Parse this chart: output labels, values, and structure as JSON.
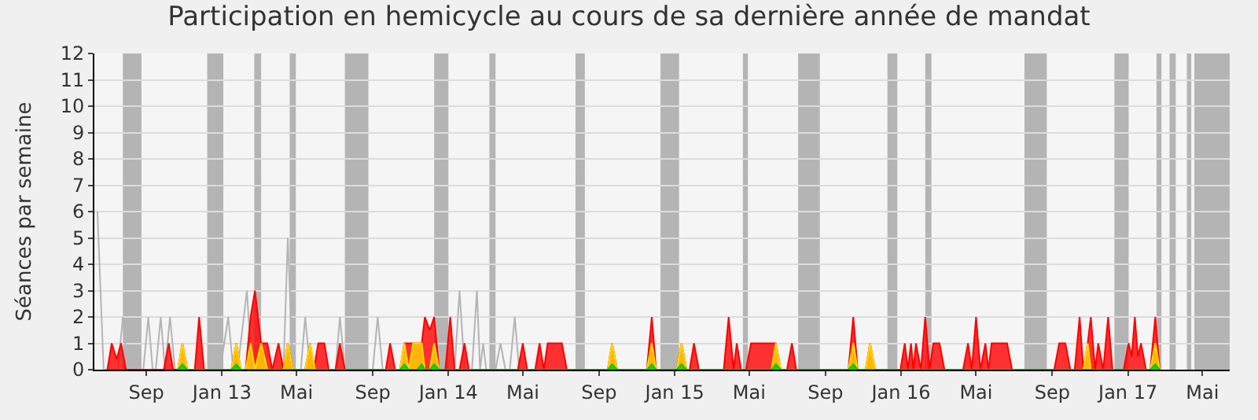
{
  "chart_data": {
    "type": "area",
    "title": "Participation en hemicycle au cours de sa dernière année de mandat",
    "ylabel": "Séances par semaine",
    "xlim": [
      "2012-06-09",
      "2017-06-14"
    ],
    "xticks": [
      {
        "value": "2012-09-01",
        "label": "Sep"
      },
      {
        "value": "2013-01-01",
        "label": "Jan 13"
      },
      {
        "value": "2013-05-01",
        "label": "Mai"
      },
      {
        "value": "2013-09-01",
        "label": "Sep"
      },
      {
        "value": "2014-01-01",
        "label": "Jan 14"
      },
      {
        "value": "2014-05-01",
        "label": "Mai"
      },
      {
        "value": "2014-09-01",
        "label": "Sep"
      },
      {
        "value": "2015-01-01",
        "label": "Jan 15"
      },
      {
        "value": "2015-05-01",
        "label": "Mai"
      },
      {
        "value": "2015-09-01",
        "label": "Sep"
      },
      {
        "value": "2016-01-01",
        "label": "Jan 16"
      },
      {
        "value": "2016-05-01",
        "label": "Mai"
      },
      {
        "value": "2016-09-01",
        "label": "Sep"
      },
      {
        "value": "2017-01-01",
        "label": "Jan 17"
      },
      {
        "value": "2017-05-01",
        "label": "Mai"
      }
    ],
    "ylim": [
      0,
      12
    ],
    "yticks": [
      0,
      1,
      2,
      3,
      4,
      5,
      6,
      7,
      8,
      9,
      10,
      11,
      12
    ],
    "grid": "y",
    "bands": [
      {
        "axis": "x",
        "from": "2012-07-25",
        "to": "2012-08-24",
        "color": "#b4b4b4"
      },
      {
        "axis": "x",
        "from": "2012-12-08",
        "to": "2013-01-03",
        "color": "#b4b4b4"
      },
      {
        "axis": "x",
        "from": "2013-02-22",
        "to": "2013-03-05",
        "color": "#b4b4b4"
      },
      {
        "axis": "x",
        "from": "2013-04-20",
        "to": "2013-04-30",
        "color": "#b4b4b4"
      },
      {
        "axis": "x",
        "from": "2013-07-18",
        "to": "2013-08-25",
        "color": "#b4b4b4"
      },
      {
        "axis": "x",
        "from": "2013-12-09",
        "to": "2014-01-01",
        "color": "#b4b4b4"
      },
      {
        "axis": "x",
        "from": "2014-03-08",
        "to": "2014-03-18",
        "color": "#b4b4b4"
      },
      {
        "axis": "x",
        "from": "2014-07-25",
        "to": "2014-08-09",
        "color": "#b4b4b4"
      },
      {
        "axis": "x",
        "from": "2014-12-09",
        "to": "2015-01-08",
        "color": "#b4b4b4"
      },
      {
        "axis": "x",
        "from": "2015-04-21",
        "to": "2015-04-29",
        "color": "#b4b4b4"
      },
      {
        "axis": "x",
        "from": "2015-07-19",
        "to": "2015-08-23",
        "color": "#b4b4b4"
      },
      {
        "axis": "x",
        "from": "2015-12-10",
        "to": "2015-12-26",
        "color": "#b4b4b4"
      },
      {
        "axis": "x",
        "from": "2016-02-09",
        "to": "2016-02-19",
        "color": "#b4b4b4"
      },
      {
        "axis": "x",
        "from": "2016-07-18",
        "to": "2016-08-23",
        "color": "#b4b4b4"
      },
      {
        "axis": "x",
        "from": "2016-12-10",
        "to": "2017-01-02",
        "color": "#b4b4b4"
      },
      {
        "axis": "x",
        "from": "2017-02-16",
        "to": "2017-02-24",
        "color": "#b4b4b4"
      },
      {
        "axis": "x",
        "from": "2017-03-09",
        "to": "2017-03-19",
        "color": "#b4b4b4"
      },
      {
        "axis": "x",
        "from": "2017-04-06",
        "to": "2017-04-13",
        "color": "#b4b4b4"
      },
      {
        "axis": "x",
        "from": "2017-04-18",
        "to": "2017-06-14",
        "color": "#b4b4b4"
      }
    ],
    "series": [
      {
        "type": "line",
        "color": "#b4b4b4",
        "x": [
          "2012-06-14",
          "2012-06-24",
          "2012-07-17",
          "2012-07-25",
          "2012-08-02",
          "2012-08-27",
          "2012-09-04",
          "2012-09-11",
          "2012-09-16",
          "2012-09-24",
          "2012-10-01",
          "2012-10-09",
          "2012-10-17",
          "2012-12-29",
          "2013-01-11",
          "2013-01-19",
          "2013-01-26",
          "2013-02-10",
          "2013-02-18",
          "2013-04-10",
          "2013-04-17",
          "2013-04-25",
          "2013-05-08",
          "2013-05-15",
          "2013-05-23",
          "2013-07-03",
          "2013-07-10",
          "2013-07-18",
          "2013-09-01",
          "2013-09-09",
          "2013-09-17",
          "2014-01-11",
          "2014-01-19",
          "2014-01-27",
          "2014-02-08",
          "2014-02-16",
          "2014-02-21",
          "2014-02-26",
          "2014-03-03",
          "2014-03-18",
          "2014-03-26",
          "2014-04-03",
          "2014-04-10",
          "2014-04-18",
          "2014-04-25"
        ],
        "values": [
          6,
          0,
          0,
          2,
          0,
          0,
          2,
          0,
          0,
          2,
          0,
          2,
          0,
          0,
          2,
          0,
          0,
          3,
          0,
          0,
          5,
          0,
          0,
          2,
          0,
          0,
          2,
          0,
          0,
          2,
          0,
          0,
          3,
          0,
          0,
          3,
          0,
          1,
          0,
          0,
          1,
          0,
          0,
          2,
          0
        ]
      },
      {
        "color": "#ff0000",
        "x": [
          "2012-06-30",
          "2012-07-07",
          "2012-07-15",
          "2012-07-22",
          "2012-07-30",
          "2012-09-29",
          "2012-10-07",
          "2012-10-14",
          "2012-10-22",
          "2012-10-29",
          "2012-11-06",
          "2012-11-18",
          "2012-11-25",
          "2012-12-03",
          "2013-01-16",
          "2013-01-24",
          "2013-01-31",
          "2013-02-08",
          "2013-02-16",
          "2013-02-23",
          "2013-03-05",
          "2013-03-15",
          "2013-03-23",
          "2013-04-02",
          "2013-04-10",
          "2013-04-17",
          "2013-04-25",
          "2013-05-15",
          "2013-05-23",
          "2013-05-29",
          "2013-06-05",
          "2013-06-15",
          "2013-06-22",
          "2013-07-03",
          "2013-07-10",
          "2013-07-18",
          "2013-09-22",
          "2013-09-29",
          "2013-10-07",
          "2013-10-15",
          "2013-10-22",
          "2013-11-01",
          "2013-11-19",
          "2013-11-24",
          "2013-12-02",
          "2013-12-09",
          "2013-12-17",
          "2013-12-27",
          "2014-01-04",
          "2014-01-11",
          "2014-01-19",
          "2014-01-27",
          "2014-02-03",
          "2014-04-23",
          "2014-05-01",
          "2014-05-08",
          "2014-05-21",
          "2014-05-28",
          "2014-06-04",
          "2014-06-10",
          "2014-07-03",
          "2014-07-11",
          "2014-09-15",
          "2014-09-22",
          "2014-09-30",
          "2014-11-17",
          "2014-11-25",
          "2014-12-02",
          "2015-01-04",
          "2015-01-12",
          "2015-01-20",
          "2015-01-25",
          "2015-02-01",
          "2015-02-09",
          "2015-03-21",
          "2015-03-29",
          "2015-04-06",
          "2015-04-11",
          "2015-04-18",
          "2015-04-26",
          "2015-05-04",
          "2015-06-06",
          "2015-06-13",
          "2015-06-21",
          "2015-07-01",
          "2015-07-09",
          "2015-07-16",
          "2015-10-08",
          "2015-10-16",
          "2015-10-23",
          "2015-11-05",
          "2015-11-12",
          "2015-11-20",
          "2015-12-31",
          "2016-01-07",
          "2016-01-12",
          "2016-01-17",
          "2016-01-21",
          "2016-01-25",
          "2016-02-02",
          "2016-02-09",
          "2016-02-16",
          "2016-02-22",
          "2016-03-03",
          "2016-03-11",
          "2016-04-10",
          "2016-04-18",
          "2016-04-24",
          "2016-05-01",
          "2016-05-08",
          "2016-05-16",
          "2016-05-21",
          "2016-05-26",
          "2016-06-20",
          "2016-06-28",
          "2016-09-04",
          "2016-09-12",
          "2016-09-22",
          "2016-09-30",
          "2016-10-07",
          "2016-10-15",
          "2016-10-21",
          "2016-10-28",
          "2016-11-02",
          "2016-11-09",
          "2016-11-14",
          "2016-11-22",
          "2016-11-30",
          "2016-12-07",
          "2016-12-25",
          "2017-01-02",
          "2017-01-07",
          "2017-01-12",
          "2017-01-17",
          "2017-01-22",
          "2017-01-30",
          "2017-02-06",
          "2017-02-14",
          "2017-02-21"
        ],
        "values": [
          0,
          1,
          0.4,
          1,
          0,
          0,
          1,
          0,
          0,
          1,
          0,
          0,
          2,
          0,
          0,
          1,
          0,
          0,
          2,
          3,
          1,
          1,
          0,
          1,
          0,
          1,
          0,
          0,
          1,
          0,
          1,
          1,
          0,
          0,
          1,
          0,
          0,
          1,
          0,
          0,
          1,
          1,
          1,
          2,
          1.5,
          2,
          0,
          0,
          2,
          0,
          0,
          1,
          0,
          0,
          1,
          0,
          0,
          1,
          0,
          1,
          1,
          0,
          0,
          1,
          0,
          0,
          2,
          0,
          0,
          1,
          0,
          0,
          1,
          0,
          0,
          2,
          0,
          1,
          0,
          0,
          1,
          1,
          1,
          0,
          0,
          1,
          0,
          0,
          2,
          0,
          0,
          1,
          0,
          0,
          1,
          0,
          1,
          0,
          1,
          0,
          2,
          0,
          1,
          1,
          0,
          0,
          1,
          0,
          2,
          0,
          1,
          0,
          1,
          1,
          0,
          0,
          1,
          1,
          0,
          0,
          2,
          0,
          1,
          2,
          0,
          1,
          0,
          2,
          0,
          0,
          1,
          0.5,
          2,
          0.5,
          1,
          0,
          0,
          2,
          0
        ]
      },
      {
        "color": "#ffd700",
        "x": [
          "2012-10-22",
          "2012-10-29",
          "2012-11-06",
          "2013-01-16",
          "2013-01-24",
          "2013-01-31",
          "2013-02-08",
          "2013-02-16",
          "2013-02-23",
          "2013-03-05",
          "2013-03-15",
          "2013-04-10",
          "2013-04-17",
          "2013-04-25",
          "2013-05-15",
          "2013-05-23",
          "2013-05-31",
          "2013-10-15",
          "2013-10-22",
          "2013-10-29",
          "2013-11-05",
          "2013-11-19",
          "2013-11-24",
          "2013-12-02",
          "2013-12-09",
          "2013-12-17",
          "2014-09-15",
          "2014-09-22",
          "2014-09-30",
          "2014-11-17",
          "2014-11-25",
          "2014-12-02",
          "2015-01-04",
          "2015-01-12",
          "2015-01-20",
          "2015-06-06",
          "2015-06-13",
          "2015-06-21",
          "2015-10-08",
          "2015-10-16",
          "2015-10-23",
          "2015-11-05",
          "2015-11-12",
          "2015-11-20",
          "2016-10-21",
          "2016-10-28",
          "2016-11-02",
          "2017-02-06",
          "2017-02-14",
          "2017-02-21"
        ],
        "values": [
          0,
          1,
          0,
          0,
          1,
          0,
          0,
          1,
          0,
          1,
          0,
          0,
          1,
          0,
          0,
          1,
          0,
          0,
          1,
          0,
          1,
          1,
          0,
          0,
          1,
          0,
          0,
          1,
          0,
          0,
          1,
          0,
          0,
          1,
          0,
          0,
          1,
          0,
          0,
          1,
          0,
          0,
          1,
          0,
          0,
          1,
          0,
          0,
          1,
          0
        ]
      },
      {
        "color": "#00cc00",
        "x": [
          "2012-10-22",
          "2012-10-29",
          "2012-11-06",
          "2013-01-16",
          "2013-01-24",
          "2013-01-31",
          "2013-10-15",
          "2013-10-22",
          "2013-10-29",
          "2013-11-12",
          "2013-11-19",
          "2013-11-24",
          "2013-12-02",
          "2013-12-09",
          "2013-12-17",
          "2014-09-15",
          "2014-09-22",
          "2014-09-30",
          "2014-11-17",
          "2014-11-25",
          "2014-12-02",
          "2015-01-04",
          "2015-01-12",
          "2015-01-20",
          "2015-06-06",
          "2015-06-13",
          "2015-06-21",
          "2015-10-08",
          "2015-10-16",
          "2015-10-23",
          "2017-02-06",
          "2017-02-14",
          "2017-02-21"
        ],
        "values": [
          0,
          0.2,
          0,
          0,
          0.2,
          0,
          0,
          0.2,
          0,
          0,
          0.2,
          0,
          0,
          0.2,
          0,
          0,
          0.2,
          0,
          0,
          0.2,
          0,
          0,
          0.2,
          0,
          0,
          0.2,
          0,
          0,
          0.2,
          0,
          0,
          0.2,
          0
        ]
      }
    ]
  }
}
